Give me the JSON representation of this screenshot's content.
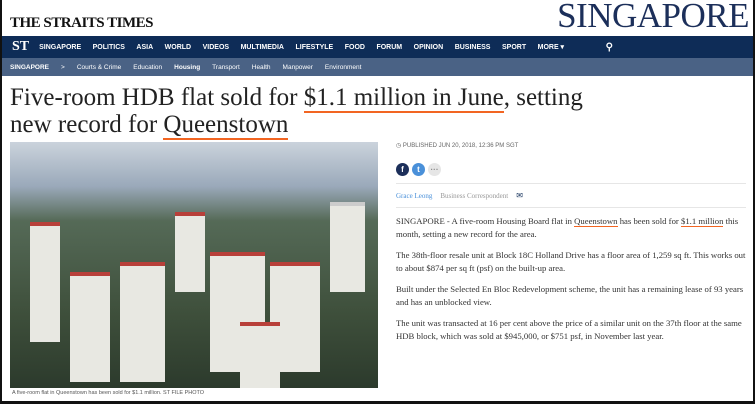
{
  "header": {
    "logo": "THE STRAITS TIMES",
    "section_banner": "SINGAPORE"
  },
  "nav": {
    "brand": "ST",
    "items": [
      "SINGAPORE",
      "POLITICS",
      "ASIA",
      "WORLD",
      "VIDEOS",
      "MULTIMEDIA",
      "LIFESTYLE",
      "FOOD",
      "FORUM",
      "OPINION",
      "BUSINESS",
      "SPORT",
      "MORE ▾"
    ],
    "search_icon": "search-icon"
  },
  "subnav": {
    "section": "SINGAPORE",
    "separator": ">",
    "items": [
      "Courts & Crime",
      "Education",
      "Housing",
      "Transport",
      "Health",
      "Manpower",
      "Environment"
    ],
    "active": "Housing"
  },
  "article": {
    "headline_pre": "Five-room HDB flat sold for ",
    "headline_hl1": "$1.1 million in June",
    "headline_mid": ", setting new record for ",
    "headline_hl2": "Queenstown",
    "caption": "A five-room flat in Queenstown has been sold for $1.1 million. ST FILE PHOTO",
    "published": "PUBLISHED  JUN 20, 2018, 12:36 PM SGT",
    "author": "Grace Leong",
    "author_role": "Business Correspondent",
    "p1_a": "SINGAPORE - A five-room Housing Board flat in ",
    "p1_hl1": "Queenstown",
    "p1_b": " has been sold for ",
    "p1_hl2": "$1.1 million",
    "p1_c": " this month, setting a new record for the area.",
    "p2": "The 38th-floor resale unit at Block 18C Holland Drive has a floor area of 1,259 sq ft. This works out to about $874 per sq ft (psf) on the built-up area.",
    "p3": "Built under the Selected En Bloc Redevelopment scheme, the unit has a remaining lease of 93 years and has an unblocked view.",
    "p4": "The unit was transacted at 16 per cent above the price of a similar unit on the 37th floor at the same HDB block, which was sold at $945,000, or $751 psf, in November last year."
  },
  "colors": {
    "nav": "#0e2c57",
    "subnav": "#4a6285",
    "highlight": "#f26522",
    "facebook": "#1c2f5a",
    "twitter": "#4a90d9"
  }
}
